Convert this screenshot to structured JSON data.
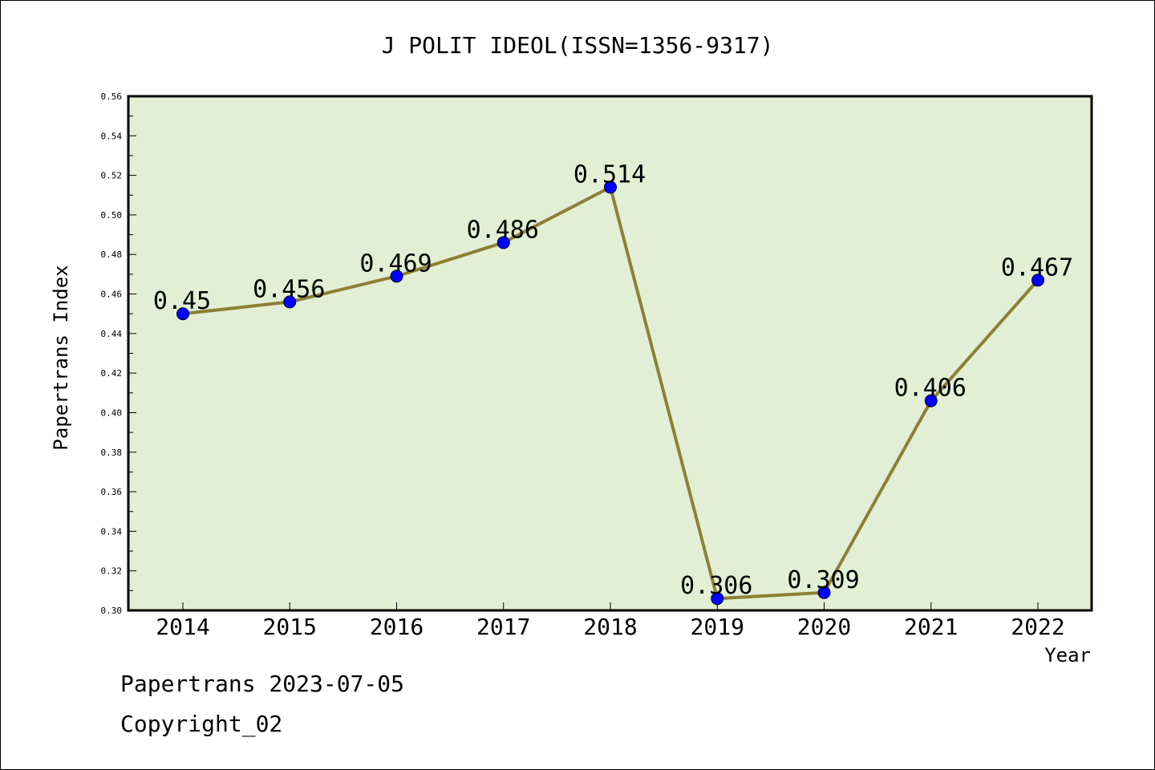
{
  "chart_data": {
    "type": "line",
    "title": "J POLIT IDEOL(ISSN=1356-9317)",
    "xlabel": "Year",
    "ylabel": "Papertrans Index",
    "categories": [
      "2014",
      "2015",
      "2016",
      "2017",
      "2018",
      "2019",
      "2020",
      "2021",
      "2022"
    ],
    "series": [
      {
        "values": [
          0.45,
          0.456,
          0.469,
          0.486,
          0.514,
          0.306,
          0.309,
          0.406,
          0.467
        ],
        "labels": [
          "0.45",
          "0.456",
          "0.469",
          "0.486",
          "0.514",
          "0.306",
          "0.309",
          "0.406",
          "0.467"
        ]
      }
    ],
    "ylim": [
      0.3,
      0.56
    ],
    "yticks": [
      "0.30",
      "0.32",
      "0.34",
      "0.36",
      "0.38",
      "0.40",
      "0.42",
      "0.44",
      "0.46",
      "0.48",
      "0.50",
      "0.52",
      "0.54",
      "0.56"
    ],
    "grid": false,
    "colors": {
      "plot_background": "#e2efd5",
      "line": "#8c8034",
      "marker": "#0000ff"
    }
  },
  "footer": {
    "date_line": "Papertrans 2023-07-05",
    "copyright_line": "Copyright_02"
  }
}
